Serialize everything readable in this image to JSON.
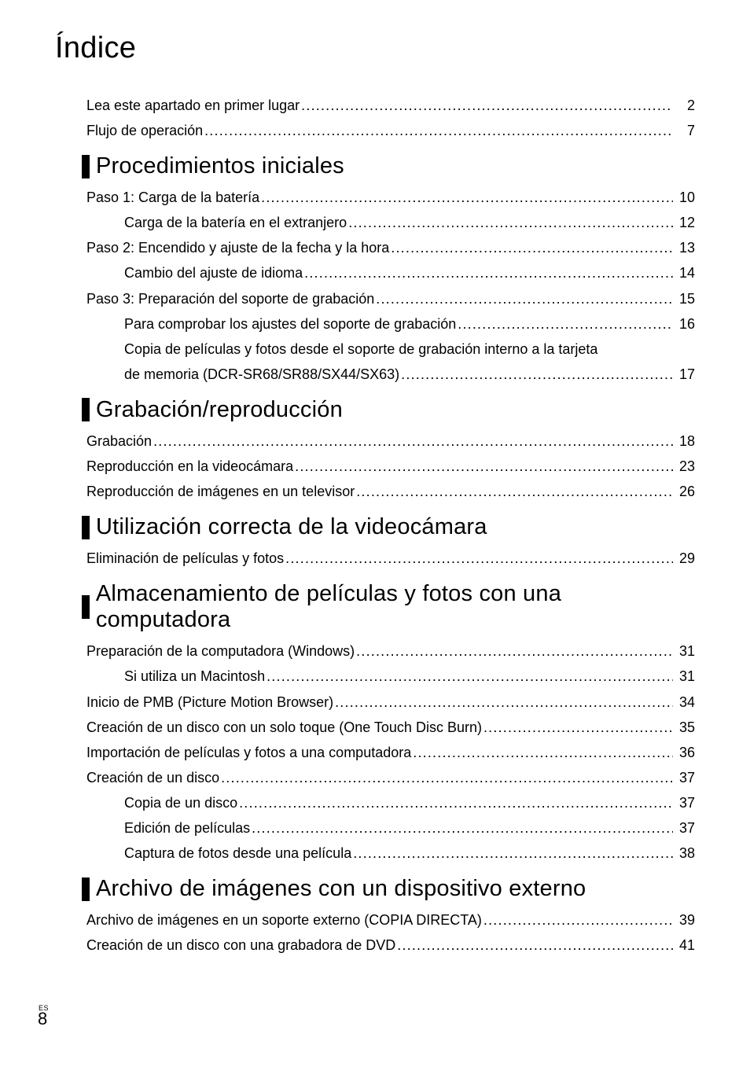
{
  "title": "Índice",
  "footer": {
    "lang": "ES",
    "page": "8"
  },
  "top": [
    {
      "label": "Lea este apartado en primer lugar",
      "page": "2",
      "indent": 0
    },
    {
      "label": "Flujo de operación",
      "page": "7",
      "indent": 0
    }
  ],
  "sections": [
    {
      "heading": "Procedimientos iniciales",
      "entries": [
        {
          "label": "Paso 1: Carga de la batería",
          "page": "10",
          "indent": 0
        },
        {
          "label": "Carga de la batería en el extranjero",
          "page": "12",
          "indent": 1
        },
        {
          "label": "Paso 2: Encendido y ajuste de la fecha y la hora",
          "page": "13",
          "indent": 0
        },
        {
          "label": "Cambio del ajuste de idioma",
          "page": "14",
          "indent": 1
        },
        {
          "label": "Paso 3: Preparación del soporte de grabación",
          "page": "15",
          "indent": 0
        },
        {
          "label": "Para comprobar los ajustes del soporte de grabación",
          "page": "16",
          "indent": 1
        },
        {
          "label_wrap": [
            "Copia de películas y fotos desde el soporte de grabación interno a la tarjeta",
            "de memoria (DCR-SR68/SR88/SX44/SX63)"
          ],
          "page": "17",
          "indent": 1
        }
      ]
    },
    {
      "heading": "Grabación/reproducción",
      "entries": [
        {
          "label": "Grabación",
          "page": "18",
          "indent": 0
        },
        {
          "label": "Reproducción en la videocámara",
          "page": "23",
          "indent": 0
        },
        {
          "label": "Reproducción de imágenes en un televisor",
          "page": "26",
          "indent": 0
        }
      ]
    },
    {
      "heading": "Utilización correcta de la videocámara",
      "entries": [
        {
          "label": "Eliminación de películas y fotos",
          "page": "29",
          "indent": 0
        }
      ]
    },
    {
      "heading": "Almacenamiento de películas y fotos con una computadora",
      "entries": [
        {
          "label": "Preparación de la computadora (Windows)",
          "page": "31",
          "indent": 0
        },
        {
          "label": "Si utiliza un Macintosh",
          "page": "31",
          "indent": 1
        },
        {
          "label": "Inicio de PMB (Picture Motion Browser)",
          "page": "34",
          "indent": 0
        },
        {
          "label": "Creación de un disco con un solo toque (One Touch Disc Burn)",
          "page": "35",
          "indent": 0
        },
        {
          "label": "Importación de películas y fotos a una computadora",
          "page": "36",
          "indent": 0
        },
        {
          "label": "Creación de un disco",
          "page": "37",
          "indent": 0
        },
        {
          "label": "Copia de un disco",
          "page": "37",
          "indent": 1
        },
        {
          "label": "Edición de películas",
          "page": "37",
          "indent": 1
        },
        {
          "label": "Captura de fotos desde una película",
          "page": "38",
          "indent": 1
        }
      ]
    },
    {
      "heading": "Archivo de imágenes con un dispositivo externo",
      "entries": [
        {
          "label": "Archivo de imágenes en un soporte externo (COPIA DIRECTA)",
          "page": "39",
          "indent": 0
        },
        {
          "label": "Creación de un disco con una grabadora de DVD",
          "page": "41",
          "indent": 0
        }
      ]
    }
  ]
}
